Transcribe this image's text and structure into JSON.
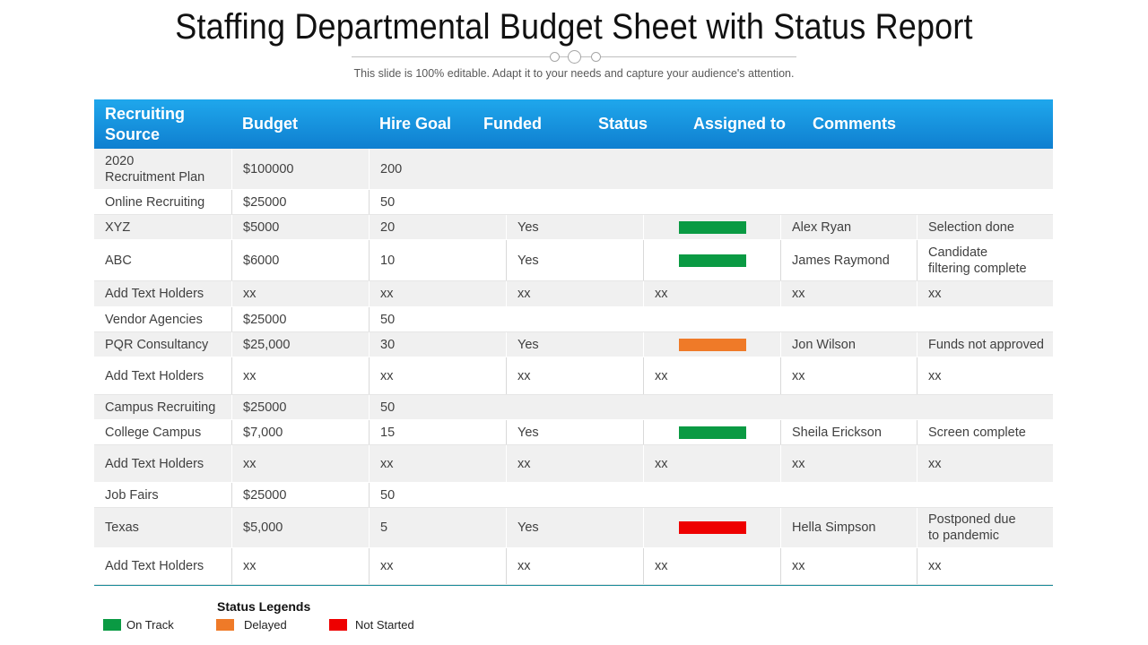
{
  "title": "Staffing Departmental Budget Sheet with Status Report",
  "subtitle": "This slide is 100% editable. Adapt it to your needs and capture your audience's attention.",
  "colors": {
    "header": "#1591dd",
    "on_track": "#0a9a43",
    "delayed": "#ef7a28",
    "not_started": "#ee0000"
  },
  "columns": [
    "Recruiting Source",
    "Budget",
    "Hire Goal",
    "Funded",
    "Status",
    "Assigned to",
    "Comments"
  ],
  "rows": [
    {
      "source": "2020\nRecruitment Plan",
      "budget": "$100000",
      "hire_goal": "200",
      "funded": "",
      "status": "",
      "assigned": "",
      "comments": "",
      "group": true
    },
    {
      "source": "Online Recruiting",
      "budget": "$25000",
      "hire_goal": "50",
      "funded": "",
      "status": "",
      "assigned": "",
      "comments": "",
      "group": true
    },
    {
      "source": "XYZ",
      "budget": "$5000",
      "hire_goal": "20",
      "funded": "Yes",
      "status": "on_track",
      "assigned": "Alex Ryan",
      "comments": "Selection done"
    },
    {
      "source": "ABC",
      "budget": "$6000",
      "hire_goal": "10",
      "funded": "Yes",
      "status": "on_track",
      "assigned": "James Raymond",
      "comments": "Candidate\nfiltering complete"
    },
    {
      "source": "Add Text Holders",
      "budget": "xx",
      "hire_goal": "xx",
      "funded": "xx",
      "status": "xx",
      "assigned": "xx",
      "comments": "xx"
    },
    {
      "source": "Vendor Agencies",
      "budget": "$25000",
      "hire_goal": "50",
      "funded": "",
      "status": "",
      "assigned": "",
      "comments": "",
      "group": true
    },
    {
      "source": "PQR Consultancy",
      "budget": "$25,000",
      "hire_goal": "30",
      "funded": "Yes",
      "status": "delayed",
      "assigned": "Jon Wilson",
      "comments": "Funds not approved"
    },
    {
      "source": "Add Text Holders",
      "budget": "xx",
      "hire_goal": "xx",
      "funded": "xx",
      "status": "xx",
      "assigned": "xx",
      "comments": "xx"
    },
    {
      "source": "Campus Recruiting",
      "budget": "$25000",
      "hire_goal": "50",
      "funded": "",
      "status": "",
      "assigned": "",
      "comments": "",
      "group": true
    },
    {
      "source": "College Campus",
      "budget": "$7,000",
      "hire_goal": "15",
      "funded": "Yes",
      "status": "on_track",
      "assigned": "Sheila Erickson",
      "comments": "Screen complete"
    },
    {
      "source": "Add Text Holders",
      "budget": "xx",
      "hire_goal": "xx",
      "funded": "xx",
      "status": "xx",
      "assigned": "xx",
      "comments": "xx"
    },
    {
      "source": "Job Fairs",
      "budget": "$25000",
      "hire_goal": "50",
      "funded": "",
      "status": "",
      "assigned": "",
      "comments": "",
      "group": true
    },
    {
      "source": "Texas",
      "budget": "$5,000",
      "hire_goal": "5",
      "funded": "Yes",
      "status": "not_started",
      "assigned": "Hella Simpson",
      "comments": "Postponed due\nto pandemic"
    },
    {
      "source": "Add Text Holders",
      "budget": "xx",
      "hire_goal": "xx",
      "funded": "xx",
      "status": "xx",
      "assigned": "xx",
      "comments": "xx"
    }
  ],
  "legend": {
    "title": "Status Legends",
    "items": [
      {
        "label": "On Track",
        "color": "#0a9a43"
      },
      {
        "label": "Delayed",
        "color": "#ef7a28"
      },
      {
        "label": "Not Started",
        "color": "#ee0000"
      }
    ]
  }
}
